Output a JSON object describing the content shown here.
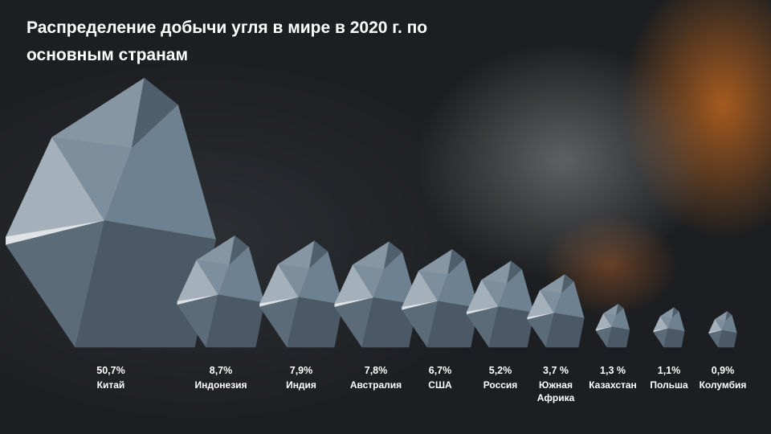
{
  "chart_data": {
    "type": "pictorial",
    "title": "Распределение добычи угля в мире в 2020 г. по основным странам",
    "categories": [
      "Китай",
      "Индонезия",
      "Индия",
      "Австралия",
      "США",
      "Россия",
      "Южная Африка",
      "Казахстан",
      "Польша",
      "Колумбия"
    ],
    "values": [
      50.7,
      8.7,
      7.9,
      7.8,
      6.7,
      5.2,
      3.7,
      1.3,
      1.1,
      0.9
    ],
    "value_labels": [
      "50,7%",
      "8,7%",
      "7,9%",
      "7,8%",
      "6,7%",
      "5,2%",
      "3,7 %",
      "1,3 %",
      "1,1%",
      "0,9%"
    ],
    "color": "#5d6d7a"
  }
}
